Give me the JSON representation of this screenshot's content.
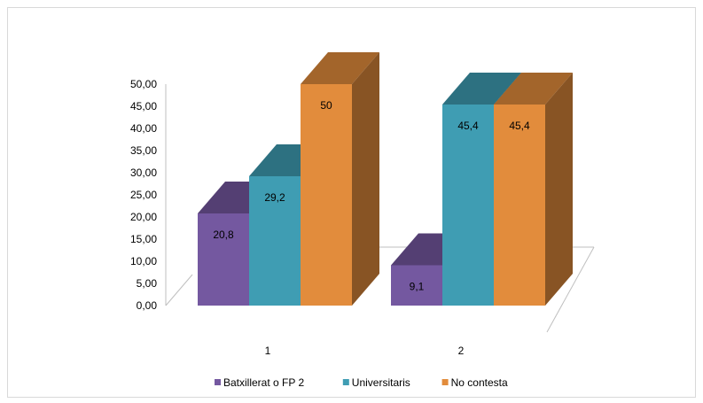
{
  "chart_data": {
    "type": "bar",
    "style": "3d-clustered-column",
    "categories": [
      "1",
      "2"
    ],
    "series": [
      {
        "name": "Batxillerat o FP 2",
        "values": [
          20.8,
          9.1
        ],
        "labels": [
          "20,8",
          "9,1"
        ],
        "color": "#7458a0"
      },
      {
        "name": "Universitaris",
        "values": [
          29.2,
          45.4
        ],
        "labels": [
          "29,2",
          "45,4"
        ],
        "color": "#3f9db3"
      },
      {
        "name": "No contesta",
        "values": [
          50,
          45.4
        ],
        "labels": [
          "50",
          "45,4"
        ],
        "color": "#e28c3c"
      }
    ],
    "yticks": [
      "0,00",
      "5,00",
      "10,00",
      "15,00",
      "20,00",
      "25,00",
      "30,00",
      "35,00",
      "40,00",
      "45,00",
      "50,00"
    ],
    "ylim": [
      0,
      50
    ],
    "legend_position": "bottom",
    "grid": false
  }
}
